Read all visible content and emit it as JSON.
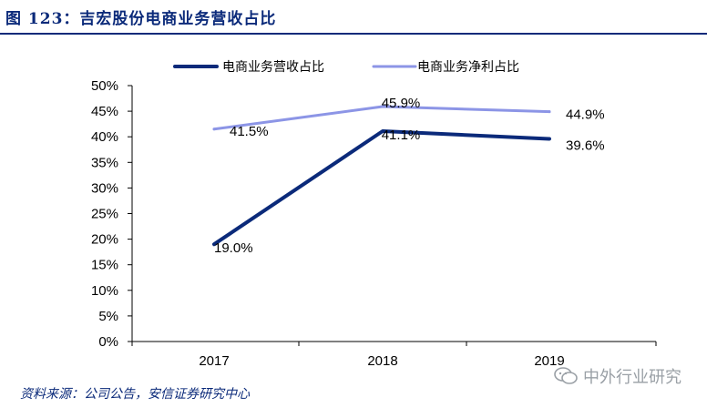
{
  "figure": {
    "title": "图 123：吉宏股份电商业务营收占比",
    "source": "资料来源：公司公告，安信证券研究中心",
    "watermark": "中外行业研究"
  },
  "chart_data": {
    "type": "line",
    "title": "",
    "xlabel": "",
    "ylabel": "",
    "categories": [
      "2017",
      "2018",
      "2019"
    ],
    "ylim": [
      0,
      50
    ],
    "y_ticks": [
      "0%",
      "5%",
      "10%",
      "15%",
      "20%",
      "25%",
      "30%",
      "35%",
      "40%",
      "45%",
      "50%"
    ],
    "grid": false,
    "legend_position": "top",
    "series": [
      {
        "name": "电商业务营收占比",
        "values": [
          19.0,
          41.1,
          39.6
        ],
        "labels": [
          "19.0%",
          "41.1%",
          "39.6%"
        ],
        "color": "#0b2a7a"
      },
      {
        "name": "电商业务净利占比",
        "values": [
          41.5,
          45.9,
          44.9
        ],
        "labels": [
          "41.5%",
          "45.9%",
          "44.9%"
        ],
        "color": "#8c95e6"
      }
    ]
  }
}
